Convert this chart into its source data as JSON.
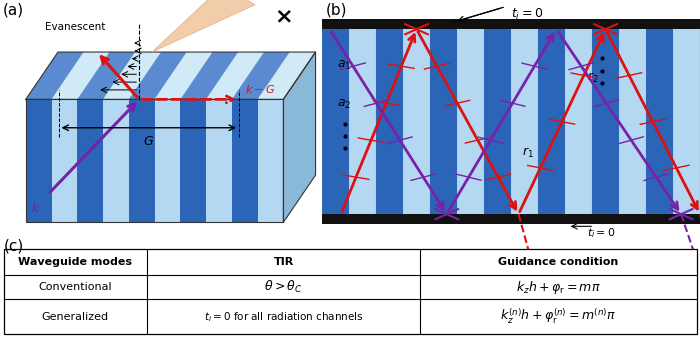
{
  "fig_width": 7.0,
  "fig_height": 3.38,
  "dpi": 100,
  "bg_color": "#ffffff",
  "panel_a_label": "(a)",
  "panel_b_label": "(b)",
  "panel_c_label": "(c)",
  "table_headers": [
    "Waveguide modes",
    "TIR",
    "Guidance condition"
  ],
  "blue_dark": "#3a6fc0",
  "blue_light": "#c0ddf0",
  "blue_mid": "#7aace0",
  "blue_side": "#8ab8d8",
  "red_color": "#dd1111",
  "purple_color": "#7722aa",
  "black_color": "#000000",
  "stripe_dark": "#2a65b8",
  "stripe_light": "#b5d8f2",
  "cone_fill": "#f0c8a0",
  "cone_edge": "#e0a878"
}
